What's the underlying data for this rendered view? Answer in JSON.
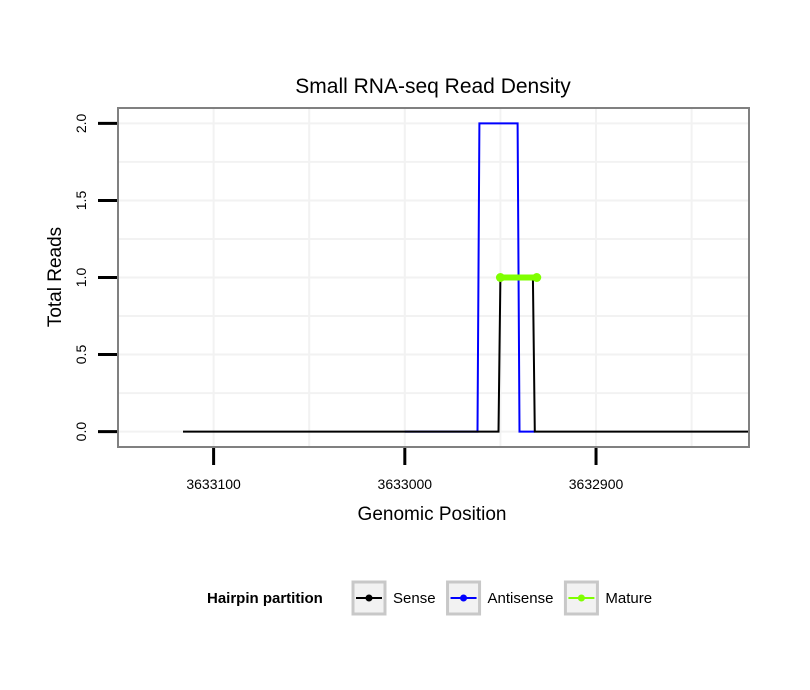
{
  "chart_data": {
    "type": "line",
    "title": "Small RNA-seq Read Density",
    "xlabel": "Genomic Position",
    "ylabel": "Total Reads",
    "x_reversed": true,
    "xlim": [
      3633150,
      3632820
    ],
    "ylim": [
      -0.1,
      2.1
    ],
    "x_ticks": [
      3633100,
      3633000,
      3632900
    ],
    "x_tick_labels": [
      "3633100",
      "3633000",
      "3632900"
    ],
    "y_ticks": [
      0,
      0.5,
      1,
      1.5,
      2
    ],
    "y_tick_labels": [
      "0.0",
      "0.5",
      "1.0",
      "1.5",
      "2.0"
    ],
    "grid": true,
    "series": [
      {
        "name": "Antisense",
        "color": "#0000ff",
        "x": [
          3633000,
          3632962,
          3632961,
          3632941,
          3632940,
          3632932
        ],
        "y": [
          0,
          0,
          2,
          2,
          0,
          0
        ]
      },
      {
        "name": "Sense",
        "color": "#000000",
        "x": [
          3633116,
          3632951,
          3632950,
          3632933,
          3632932,
          3632820
        ],
        "y": [
          0,
          0,
          1,
          1,
          0,
          0
        ]
      },
      {
        "name": "Mature",
        "color": "#7fff00",
        "x": [
          3632950,
          3632931
        ],
        "y": [
          1,
          1
        ]
      }
    ],
    "legend": {
      "title": "Hairpin partition",
      "position": "bottom",
      "entries": [
        {
          "label": "Sense",
          "color": "#000000"
        },
        {
          "label": "Antisense",
          "color": "#0000ff"
        },
        {
          "label": "Mature",
          "color": "#7fff00"
        }
      ]
    }
  }
}
